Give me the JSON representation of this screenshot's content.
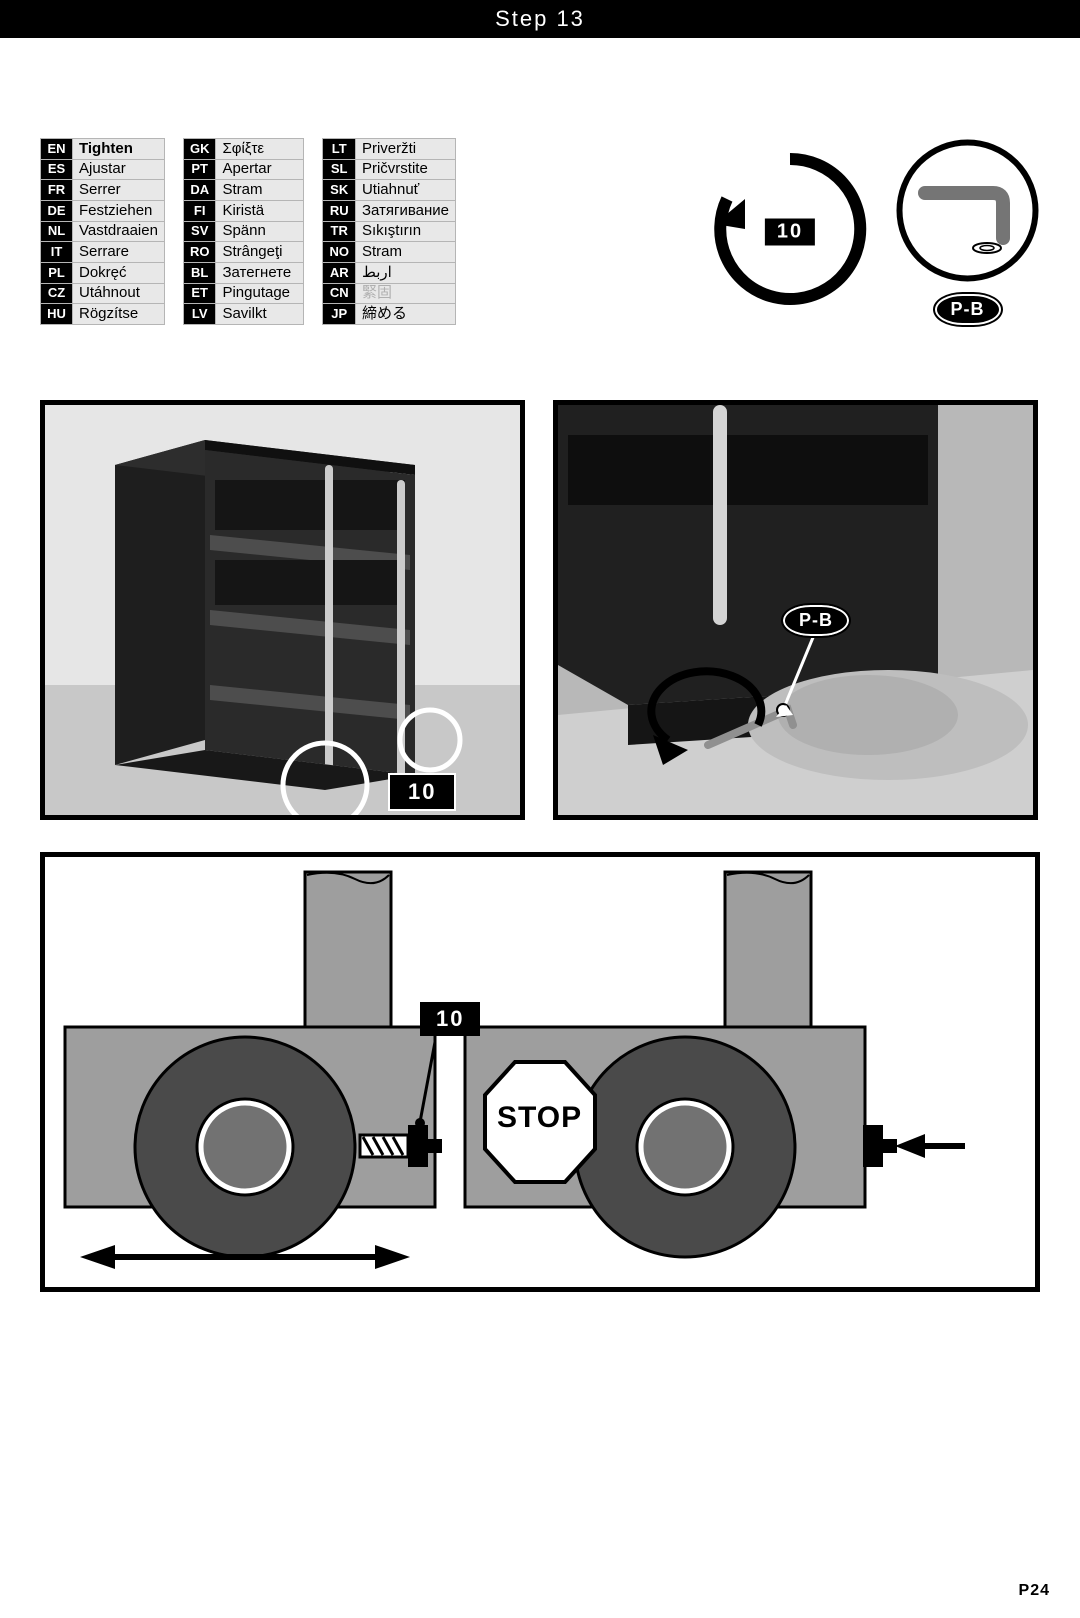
{
  "header": {
    "title": "Step 13"
  },
  "translations": {
    "col1": [
      {
        "code": "EN",
        "word": "Tighten",
        "bold": true
      },
      {
        "code": "ES",
        "word": "Ajustar"
      },
      {
        "code": "FR",
        "word": "Serrer"
      },
      {
        "code": "DE",
        "word": "Festziehen"
      },
      {
        "code": "NL",
        "word": "Vastdraaien"
      },
      {
        "code": "IT",
        "word": "Serrare"
      },
      {
        "code": "PL",
        "word": "Dokręć"
      },
      {
        "code": "CZ",
        "word": "Utáhnout"
      },
      {
        "code": "HU",
        "word": "Rögzítse"
      }
    ],
    "col2": [
      {
        "code": "GK",
        "word": "Σφίξτε"
      },
      {
        "code": "PT",
        "word": "Apertar"
      },
      {
        "code": "DA",
        "word": "Stram"
      },
      {
        "code": "FI",
        "word": "Kiristä"
      },
      {
        "code": "SV",
        "word": "Spänn"
      },
      {
        "code": "RO",
        "word": "Strângeţi"
      },
      {
        "code": "BL",
        "word": "Затегнете"
      },
      {
        "code": "ET",
        "word": "Pingutage"
      },
      {
        "code": "LV",
        "word": "Savilkt"
      }
    ],
    "col3": [
      {
        "code": "LT",
        "word": "Priveržti"
      },
      {
        "code": "SL",
        "word": "Pričvrstite"
      },
      {
        "code": "SK",
        "word": "Utiahnuť"
      },
      {
        "code": "RU",
        "word": "Затягивание"
      },
      {
        "code": "TR",
        "word": "Sıkıştırın"
      },
      {
        "code": "NO",
        "word": "Stram"
      },
      {
        "code": "AR",
        "word": "اربط"
      },
      {
        "code": "CN",
        "word": "緊固",
        "faded": true
      },
      {
        "code": "JP",
        "word": "締める"
      }
    ]
  },
  "labels": {
    "rotation_badge": "10",
    "tool_label": "P-B",
    "photo1_badge": "10",
    "photo2_label": "P-B",
    "diagram_badge": "10",
    "stop_text": "STOP"
  },
  "page_number": "P24",
  "colors": {
    "black": "#000000",
    "white": "#ffffff",
    "light_gray_photo": "#d8d8d8",
    "cabinet_gray": "#8a8a8a",
    "dark_cabinet": "#2a2a2a",
    "mesh": "#1a1a1a",
    "floor": "#bcbcbc",
    "wheel": "#4a4a4a",
    "table_cell_bg": "#e8e8e8",
    "table_border": "#b5b5b5",
    "diagram_fill": "#9e9e9e",
    "diagram_dark": "#727272",
    "bolt_hatch": "#303030"
  }
}
